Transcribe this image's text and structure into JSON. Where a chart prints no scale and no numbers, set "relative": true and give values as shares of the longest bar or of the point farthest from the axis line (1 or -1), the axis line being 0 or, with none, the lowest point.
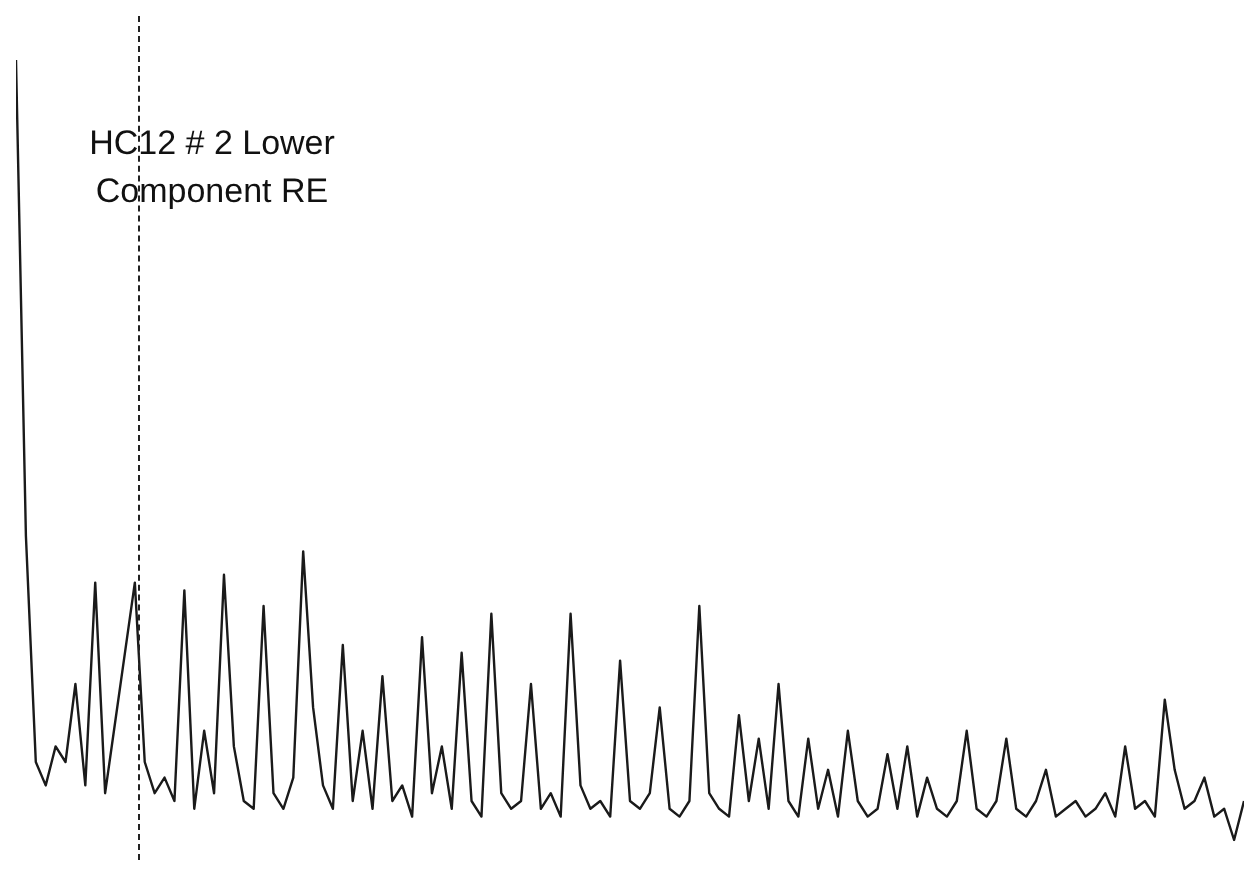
{
  "chart_data": {
    "type": "line",
    "title": "HC12 # 2 Lower Component RE",
    "relative": true,
    "color": "#1a1a1a",
    "categories": [
      null,
      null,
      null,
      null,
      null,
      null,
      null,
      null,
      null,
      null,
      null,
      null,
      null,
      null,
      null,
      null,
      null,
      null,
      null,
      null,
      null,
      null,
      null,
      null,
      null,
      null,
      null,
      null,
      null,
      null,
      null,
      null,
      null,
      null,
      null,
      null,
      null,
      null,
      null,
      null,
      null,
      null,
      null,
      null,
      null,
      null,
      null,
      null,
      null,
      null,
      null,
      null,
      null,
      null,
      null,
      null,
      null,
      null,
      null,
      null,
      null,
      null,
      null,
      null,
      null,
      null,
      null,
      null,
      null,
      null,
      null,
      null,
      null,
      null,
      null,
      null,
      null,
      null,
      null,
      null,
      null,
      null,
      null,
      null,
      null,
      null,
      null,
      null,
      null,
      null,
      null,
      null,
      null,
      null,
      null,
      null,
      null,
      null,
      null,
      null,
      null,
      null,
      null,
      null,
      null,
      null,
      null,
      null,
      null,
      null,
      null,
      null,
      null,
      null,
      null,
      null,
      null,
      null,
      null,
      null,
      null,
      null,
      null,
      null,
      null
    ],
    "values": [
      1.0,
      0.39,
      0.1,
      0.07,
      0.12,
      0.1,
      0.2,
      0.07,
      0.33,
      0.06,
      0.15,
      0.24,
      0.33,
      0.1,
      0.06,
      0.08,
      0.05,
      0.32,
      0.04,
      0.14,
      0.06,
      0.34,
      0.12,
      0.05,
      0.04,
      0.3,
      0.06,
      0.04,
      0.08,
      0.37,
      0.17,
      0.07,
      0.04,
      0.25,
      0.05,
      0.14,
      0.04,
      0.21,
      0.05,
      0.07,
      0.03,
      0.26,
      0.06,
      0.12,
      0.04,
      0.24,
      0.05,
      0.03,
      0.29,
      0.06,
      0.04,
      0.05,
      0.2,
      0.04,
      0.06,
      0.03,
      0.29,
      0.07,
      0.04,
      0.05,
      0.03,
      0.23,
      0.05,
      0.04,
      0.06,
      0.17,
      0.04,
      0.03,
      0.05,
      0.3,
      0.06,
      0.04,
      0.03,
      0.16,
      0.05,
      0.13,
      0.04,
      0.2,
      0.05,
      0.03,
      0.13,
      0.04,
      0.09,
      0.03,
      0.14,
      0.05,
      0.03,
      0.04,
      0.11,
      0.04,
      0.12,
      0.03,
      0.08,
      0.04,
      0.03,
      0.05,
      0.14,
      0.04,
      0.03,
      0.05,
      0.13,
      0.04,
      0.03,
      0.05,
      0.09,
      0.03,
      0.04,
      0.05,
      0.03,
      0.04,
      0.06,
      0.03,
      0.12,
      0.04,
      0.05,
      0.03,
      0.18,
      0.09,
      0.04,
      0.05,
      0.08,
      0.03,
      0.04,
      0.0,
      0.05
    ]
  }
}
